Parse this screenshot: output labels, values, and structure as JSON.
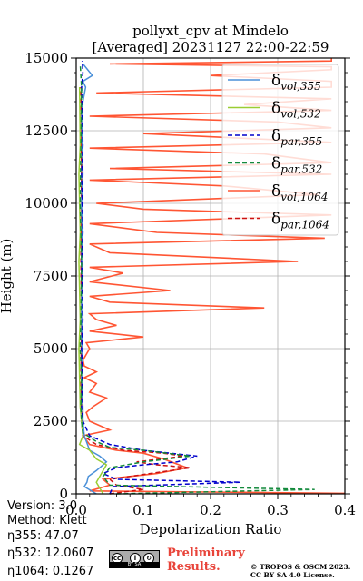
{
  "chart_data": {
    "type": "line",
    "title": "pollyxt_cpv at Mindelo",
    "subtitle": "[Averaged] 20231127 22:00-22:59",
    "xlabel": "Depolarization Ratio",
    "ylabel": "Height (m)",
    "xlim": [
      0,
      0.4
    ],
    "ylim": [
      0,
      15000
    ],
    "xticks": [
      "0.0",
      "0.1",
      "0.2",
      "0.3",
      "0.4"
    ],
    "yticks": [
      "0",
      "2500",
      "5000",
      "7500",
      "10000",
      "12500",
      "15000"
    ],
    "grid": true,
    "legend_position": "top-right",
    "legend": [
      {
        "base": "δ",
        "sub": "vol,355",
        "color": "#4a90d9",
        "dash": "solid"
      },
      {
        "base": "δ",
        "sub": "vol,532",
        "color": "#9acd32",
        "dash": "solid"
      },
      {
        "base": "δ",
        "sub": "par,355",
        "color": "#0000cc",
        "dash": "dashed"
      },
      {
        "base": "δ",
        "sub": "par,532",
        "color": "#138a3c",
        "dash": "dashed"
      },
      {
        "base": "δ",
        "sub": "vol,1064",
        "color": "#ff5533",
        "dash": "solid"
      },
      {
        "base": "δ",
        "sub": "par,1064",
        "color": "#cc1111",
        "dash": "dashed"
      }
    ],
    "series": [
      {
        "name": "δvol,355",
        "color": "#4a90d9",
        "dash": "solid",
        "x": [
          0.03,
          0.012,
          0.016,
          0.018,
          0.03,
          0.045,
          0.035,
          0.02,
          0.012,
          0.01,
          0.01,
          0.008,
          0.009,
          0.008,
          0.008,
          0.01,
          0.008,
          0.009,
          0.008,
          0.01,
          0.009,
          0.008,
          0.01,
          0.014,
          0.01,
          0.024,
          0.01
        ],
        "y": [
          0,
          250,
          400,
          600,
          800,
          1100,
          1300,
          1500,
          2000,
          2500,
          3000,
          4000,
          5000,
          6000,
          7000,
          7500,
          8000,
          9000,
          10000,
          11000,
          12000,
          13000,
          13500,
          14000,
          14200,
          14400,
          14800
        ]
      },
      {
        "name": "δvol,532",
        "color": "#9acd32",
        "dash": "solid",
        "x": [
          0.04,
          0.035,
          0.03,
          0.045,
          0.03,
          0.02,
          0.005,
          0.01,
          0.008,
          0.006,
          0.005,
          0.004,
          0.006,
          0.005,
          0.004,
          0.006,
          0.005,
          0.004,
          0.006,
          0.005
        ],
        "y": [
          0,
          200,
          400,
          1000,
          1200,
          1500,
          1700,
          2000,
          2500,
          3000,
          4000,
          5000,
          6000,
          7000,
          8000,
          9000,
          10000,
          11000,
          12000,
          14000
        ]
      },
      {
        "name": "δpar,355",
        "color": "#0000cc",
        "dash": "dashed",
        "x": [
          0.05,
          0.055,
          0.245,
          0.06,
          0.04,
          0.06,
          0.1,
          0.15,
          0.18,
          0.14,
          0.1,
          0.05,
          0.02,
          0.01,
          0.008,
          0.009,
          0.008,
          0.01,
          0.009,
          0.008,
          0.01,
          0.009,
          0.008,
          0.01,
          0.009,
          0.008,
          0.01,
          0.009
        ],
        "y": [
          0,
          250,
          400,
          500,
          700,
          900,
          1000,
          1100,
          1300,
          1400,
          1500,
          1700,
          2000,
          2500,
          3000,
          4000,
          5000,
          6000,
          7000,
          8000,
          9000,
          10000,
          11000,
          12000,
          13000,
          14000,
          14500,
          14900
        ]
      },
      {
        "name": "δpar,532",
        "color": "#138a3c",
        "dash": "dashed",
        "x": [
          0.06,
          0.355,
          0.05,
          0.04,
          0.05,
          0.1,
          0.17,
          0.1,
          0.05,
          0.03,
          0.01,
          0.008,
          0.007,
          0.008,
          0.006,
          0.007,
          0.008,
          0.006,
          0.007,
          0.008,
          0.006
        ],
        "y": [
          0,
          150,
          300,
          600,
          900,
          1100,
          1300,
          1500,
          1600,
          1800,
          2100,
          2500,
          3000,
          4000,
          5000,
          6000,
          8000,
          10000,
          12000,
          14000,
          14800
        ]
      },
      {
        "name": "δvol,1064",
        "color": "#ff5533",
        "dash": "solid",
        "x": [
          0.4,
          0.02,
          0.05,
          0.04,
          0.12,
          0.165,
          0.13,
          0.1,
          0.06,
          0.02,
          0.01,
          0.05,
          0.02,
          0.015,
          0.025,
          0.045,
          0.02,
          0.03,
          0.012,
          0.03,
          0.012,
          0.01,
          0.015,
          0.02,
          0.015,
          0.1,
          0.02,
          0.06,
          0.03,
          0.02,
          0.28,
          0.05,
          0.02,
          0.14,
          0.02,
          0.07,
          0.02,
          0.33,
          0.05,
          0.02,
          0.37,
          0.12,
          0.02,
          0.38,
          0.1,
          0.03,
          0.36,
          0.22,
          0.02,
          0.38,
          0.05,
          0.38,
          0.28,
          0.02,
          0.38,
          0.1,
          0.38,
          0.3,
          0.02,
          0.38,
          0.25,
          0.38,
          0.03,
          0.38,
          0.38,
          0.2,
          0.38,
          0.38,
          0.05,
          0.38,
          0.38
        ],
        "y": [
          20,
          100,
          300,
          500,
          700,
          900,
          1200,
          1400,
          1500,
          1700,
          2000,
          2200,
          2500,
          2800,
          3000,
          3300,
          3500,
          3800,
          4000,
          4200,
          4400,
          4600,
          4800,
          5000,
          5200,
          5400,
          5600,
          5800,
          6000,
          6200,
          6400,
          6600,
          6800,
          7000,
          7300,
          7600,
          7800,
          8000,
          8300,
          8600,
          8800,
          9000,
          9300,
          9600,
          9800,
          10000,
          10300,
          10600,
          10800,
          11000,
          11200,
          11400,
          11700,
          11900,
          12100,
          12400,
          12600,
          12800,
          13000,
          13200,
          13400,
          13600,
          13800,
          14000,
          14200,
          14400,
          14600,
          14700,
          14800,
          14900,
          15000
        ]
      },
      {
        "name": "δpar,1064",
        "color": "#cc1111",
        "dash": "dashed",
        "x": [
          0.05,
          0.1,
          0.06,
          0.05,
          0.11,
          0.17,
          0.12,
          0.09,
          0.16,
          0.13,
          0.07,
          0.03,
          0.01,
          0.008,
          0.007,
          0.008,
          0.007,
          0.008,
          0.007
        ],
        "y": [
          0,
          150,
          300,
          500,
          700,
          900,
          1000,
          1100,
          1300,
          1400,
          1500,
          1700,
          2000,
          2500,
          4000,
          6000,
          8000,
          11000,
          14000
        ]
      }
    ]
  },
  "meta": {
    "version": "Version: 3.0",
    "method": "Method: Klett",
    "eta355": "η355:  47.07",
    "eta532": "η532: 12.0607",
    "eta1064": "η1064: 0.1267"
  },
  "footer": {
    "preliminary_line1": "Preliminary",
    "preliminary_line2": "Results.",
    "copyright_line1": "© TROPOS & OSCM 2023.",
    "copyright_line2": "CC BY SA 4.0 License.",
    "license_badge": {
      "cc": "cc",
      "by": "i",
      "sa": "↻",
      "text": "BY  SA"
    }
  }
}
